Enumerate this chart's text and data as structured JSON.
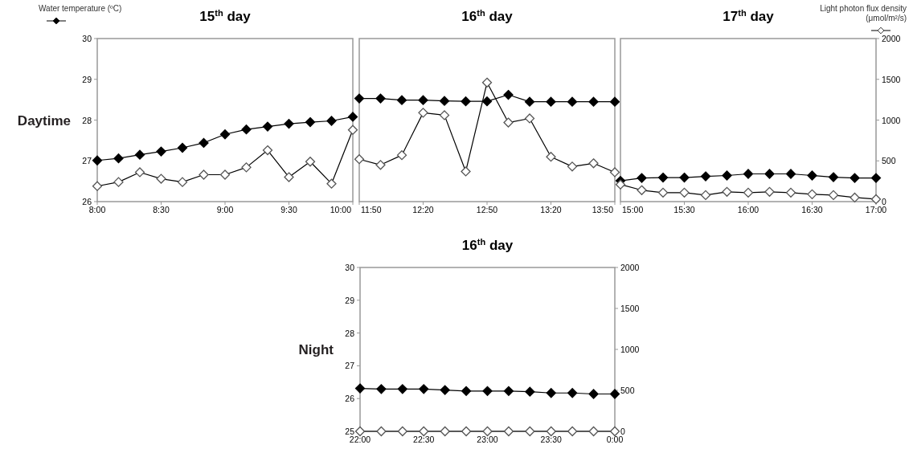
{
  "chart_data": [
    {
      "type": "line",
      "title": "15$^{th}$ day",
      "ylabel": "Daytime",
      "x": [
        8,
        8.1667,
        8.3333,
        8.5,
        8.6667,
        8.8333,
        9,
        9.1667,
        9.3333,
        9.5,
        9.6667,
        9.8333,
        10
      ],
      "xlim": [
        8,
        10
      ],
      "xticks": [
        {
          "value": 8,
          "label": "8:00"
        },
        {
          "value": 8.5,
          "label": "8:30"
        },
        {
          "value": 9,
          "label": "9:00"
        },
        {
          "value": 9.5,
          "label": "9:30"
        },
        {
          "value": 10,
          "label": "10:00"
        }
      ],
      "ylim": [
        26,
        30
      ],
      "yticks": [
        26,
        27,
        28,
        29,
        30
      ],
      "y2lim": [
        0,
        2000
      ],
      "tick_labels": [
        "x",
        "y"
      ],
      "marker": "diamond",
      "legend": "top left",
      "series": [
        {
          "name": "Water temperature (ºC)",
          "color": "#000000",
          "values": [
            27.01,
            27.06,
            27.15,
            27.23,
            27.32,
            27.44,
            27.65,
            27.77,
            27.84,
            27.91,
            27.95,
            27.98,
            28.08
          ]
        },
        {
          "color": "#ffffff",
          "axis": "y2",
          "values": [
            190,
            240,
            360,
            280,
            240,
            330,
            330,
            420,
            630,
            300,
            490,
            220,
            880
          ]
        }
      ]
    },
    {
      "type": "line",
      "title": "16$^{th}$ day",
      "x": [
        11.8333,
        12,
        12.1667,
        12.3333,
        12.5,
        12.6667,
        12.8333,
        13,
        13.1667,
        13.3333,
        13.5,
        13.6667,
        13.8333
      ],
      "xlim": [
        11.8333,
        13.8333
      ],
      "xticks": [
        {
          "value": 11.8333,
          "label": "11:50"
        },
        {
          "value": 12.3333,
          "label": "12:20"
        },
        {
          "value": 12.8333,
          "label": "12:50"
        },
        {
          "value": 13.3333,
          "label": "13:20"
        },
        {
          "value": 13.8333,
          "label": "13:50"
        }
      ],
      "ylim": [
        26,
        30
      ],
      "y2lim": [
        0,
        2000
      ],
      "tick_labels": [
        "x"
      ],
      "marker": "diamond",
      "series": [
        {
          "color": "#000000",
          "values": [
            28.53,
            28.53,
            28.49,
            28.49,
            28.47,
            28.46,
            28.46,
            28.62,
            28.45,
            28.45,
            28.45,
            28.45,
            28.45
          ]
        },
        {
          "color": "#ffffff",
          "axis": "y2",
          "values": [
            520,
            450,
            570,
            1090,
            1060,
            370,
            1460,
            970,
            1020,
            550,
            430,
            470,
            360
          ]
        }
      ]
    },
    {
      "type": "line",
      "title": "17$^{th}$ day",
      "x": [
        15,
        15.1667,
        15.3333,
        15.5,
        15.6667,
        15.8333,
        16,
        16.1667,
        16.3333,
        16.5,
        16.6667,
        16.8333,
        17
      ],
      "xlim": [
        15,
        17
      ],
      "xticks": [
        {
          "value": 15,
          "label": "15:00"
        },
        {
          "value": 15.5,
          "label": "15:30"
        },
        {
          "value": 16,
          "label": "16:00"
        },
        {
          "value": 16.5,
          "label": "16:30"
        },
        {
          "value": 17,
          "label": "17:00"
        }
      ],
      "ylim": [
        26,
        30
      ],
      "y2lim": [
        0,
        2000
      ],
      "y2ticks": [
        0,
        500,
        1000,
        1500,
        2000
      ],
      "tick_labels": [
        "x",
        "y2"
      ],
      "marker": "diamond",
      "legend": "top right",
      "series": [
        {
          "color": "#000000",
          "values": [
            26.51,
            26.58,
            26.59,
            26.59,
            26.62,
            26.64,
            26.68,
            26.68,
            26.68,
            26.64,
            26.6,
            26.58,
            26.58
          ]
        },
        {
          "name": "Light photon flux density (μmol/m²/s)",
          "color": "#ffffff",
          "axis": "y2",
          "values": [
            210,
            140,
            110,
            110,
            80,
            120,
            110,
            120,
            110,
            90,
            80,
            50,
            30
          ]
        }
      ]
    },
    {
      "type": "line",
      "title": "16$^{th}$ day",
      "ylabel": "Night",
      "x": [
        22,
        22.1667,
        22.3333,
        22.5,
        22.6667,
        22.8333,
        23,
        23.1667,
        23.3333,
        23.5,
        23.6667,
        23.8333,
        24
      ],
      "xlim": [
        22,
        24
      ],
      "xticks": [
        {
          "value": 22,
          "label": "22:00"
        },
        {
          "value": 22.5,
          "label": "22:30"
        },
        {
          "value": 23,
          "label": "23:00"
        },
        {
          "value": 23.5,
          "label": "23:30"
        },
        {
          "value": 24,
          "label": "0:00"
        }
      ],
      "ylim": [
        25,
        30
      ],
      "yticks": [
        25,
        26,
        27,
        28,
        29,
        30
      ],
      "y2lim": [
        0,
        2000
      ],
      "y2ticks": [
        0,
        500,
        1000,
        1500,
        2000
      ],
      "marker": "diamond",
      "series": [
        {
          "color": "#000000",
          "values": [
            26.31,
            26.29,
            26.29,
            26.29,
            26.26,
            26.23,
            26.23,
            26.23,
            26.21,
            26.17,
            26.17,
            26.14,
            26.14
          ]
        },
        {
          "color": "#ffffff",
          "axis": "y2",
          "values": [
            0,
            0,
            0,
            0,
            0,
            0,
            0,
            0,
            0,
            0,
            0,
            0,
            0
          ]
        }
      ]
    }
  ]
}
